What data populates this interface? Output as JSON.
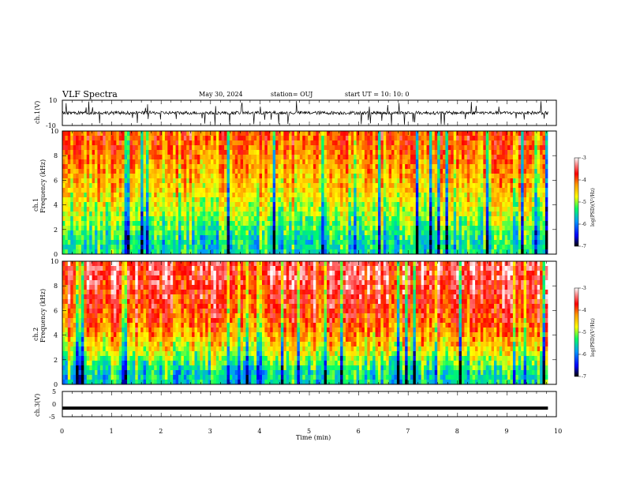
{
  "header": {
    "title": "VLF Spectra",
    "date": "May 30, 2024",
    "station": "station= OUJ",
    "start": "start  UT  =   10: 10: 0"
  },
  "colorbar": {
    "label": "log(PSD)(V²/Hz)",
    "ticks": [
      "-3",
      "-4",
      "-5",
      "-6",
      "-7"
    ],
    "colors": [
      "#ffffff",
      "#ff0000",
      "#ffff00",
      "#00ff66",
      "#0000ff",
      "#000000"
    ]
  },
  "chart_data": [
    {
      "type": "line",
      "panel": "ch1-waveform",
      "ylabel": "ch.1(V)",
      "ylim": [
        -10,
        10
      ],
      "ytick_labels": [
        "10",
        "-10"
      ],
      "xlim": [
        0,
        10
      ],
      "description_values": {
        "baseline": 0,
        "typical_range": [
          -2,
          2
        ],
        "spike_max": 10,
        "spike_min": -10
      }
    },
    {
      "type": "heatmap",
      "panel": "ch1-spectrogram",
      "ylabel": "ch.1\nFrequency  (kHz)",
      "ylim": [
        0,
        10
      ],
      "ytick_labels": [
        "0",
        "2",
        "4",
        "6",
        "8",
        "10"
      ],
      "xlim": [
        0,
        9.83
      ],
      "zlim": [
        -7,
        -3
      ],
      "zlabel": "log(PSD)(V²/Hz)",
      "band_mean_log_psd": [
        {
          "freq_khz": 1,
          "value": -5.5
        },
        {
          "freq_khz": 3,
          "value": -5.0
        },
        {
          "freq_khz": 5,
          "value": -4.6
        },
        {
          "freq_khz": 7,
          "value": -4.3
        },
        {
          "freq_khz": 9,
          "value": -4.0
        }
      ]
    },
    {
      "type": "heatmap",
      "panel": "ch2-spectrogram",
      "ylabel": "ch.2\nFrequency  (kHz)",
      "ylim": [
        0,
        10
      ],
      "ytick_labels": [
        "0",
        "2",
        "4",
        "6",
        "8",
        "10"
      ],
      "xlim": [
        0,
        9.83
      ],
      "zlim": [
        -7,
        -3
      ],
      "zlabel": "log(PSD)(V²/Hz)",
      "band_mean_log_psd": [
        {
          "freq_khz": 1,
          "value": -5.6
        },
        {
          "freq_khz": 3,
          "value": -4.7
        },
        {
          "freq_khz": 5,
          "value": -4.1
        },
        {
          "freq_khz": 7,
          "value": -3.8
        },
        {
          "freq_khz": 9,
          "value": -3.6
        }
      ]
    },
    {
      "type": "line",
      "panel": "ch3-waveform",
      "ylabel": "ch.3(V)",
      "ylim": [
        -5,
        5
      ],
      "ytick_labels": [
        "5",
        "0",
        "-5"
      ],
      "xlim": [
        0,
        10
      ],
      "values_constant": -1.6
    }
  ],
  "xaxis": {
    "label": "Time  (min)",
    "ticks": [
      "0",
      "1",
      "2",
      "3",
      "4",
      "5",
      "6",
      "7",
      "8",
      "9",
      "10"
    ]
  }
}
